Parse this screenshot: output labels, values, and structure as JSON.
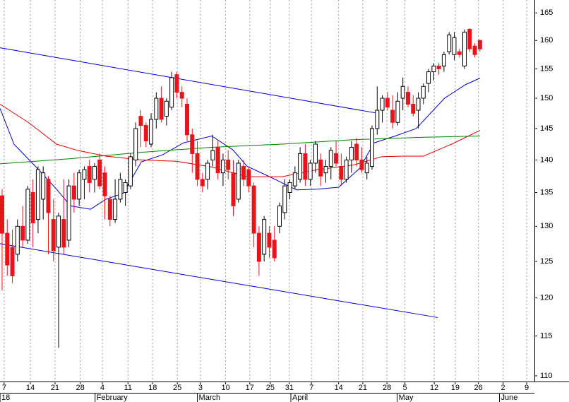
{
  "chart_data": {
    "type": "candlestick",
    "up_color": "#ffffff",
    "down_color": "#e8141b",
    "ohlc": [
      [
        134.5,
        135.5,
        121,
        129
      ],
      [
        129,
        131,
        123,
        124.5
      ],
      [
        127,
        129.5,
        122,
        123
      ],
      [
        126,
        131,
        125,
        130
      ],
      [
        130,
        133,
        127,
        128
      ],
      [
        128,
        136,
        127.5,
        135.5
      ],
      [
        135,
        137,
        127,
        130.5
      ],
      [
        131,
        139,
        129,
        138.5
      ],
      [
        134,
        139,
        131,
        138
      ],
      [
        137,
        137.5,
        126,
        132
      ],
      [
        131,
        134,
        125,
        126.5
      ],
      [
        127,
        132,
        113.5,
        131.5
      ],
      [
        131,
        137,
        126,
        127
      ],
      [
        128,
        137,
        127,
        136
      ],
      [
        136,
        138,
        132,
        134
      ],
      [
        134,
        138.5,
        133,
        138
      ],
      [
        137,
        139,
        134,
        138.5
      ],
      [
        139,
        140,
        135,
        136.5
      ],
      [
        137,
        139.5,
        135,
        139
      ],
      [
        140,
        141,
        135.5,
        136
      ],
      [
        138,
        139,
        131,
        134.5
      ],
      [
        134,
        134.5,
        130,
        131
      ],
      [
        131,
        137,
        130.5,
        134
      ],
      [
        134,
        138,
        133.5,
        137
      ],
      [
        135,
        137,
        133,
        136.5
      ],
      [
        136,
        141,
        135.5,
        140.5
      ],
      [
        140,
        146,
        139,
        145
      ],
      [
        147,
        148,
        142,
        145.5
      ],
      [
        145.5,
        146,
        142,
        143
      ],
      [
        142.5,
        147.5,
        142,
        146.5
      ],
      [
        146.5,
        151,
        145,
        150
      ],
      [
        150,
        152,
        146,
        146.5
      ],
      [
        147,
        150,
        145.5,
        149.5
      ],
      [
        148.5,
        154.5,
        148,
        153.5
      ],
      [
        154,
        154.5,
        150,
        151
      ],
      [
        151,
        152,
        148.5,
        150
      ],
      [
        149,
        150,
        143,
        144
      ],
      [
        144,
        145,
        138,
        141
      ],
      [
        141,
        143,
        136,
        137
      ],
      [
        137,
        138,
        135,
        136
      ],
      [
        137,
        140,
        135.5,
        139.5
      ],
      [
        140,
        144,
        139,
        141.5
      ],
      [
        142,
        143,
        137,
        138
      ],
      [
        138,
        141,
        136,
        140
      ],
      [
        140,
        141.5,
        137,
        138.5
      ],
      [
        138,
        140,
        131.5,
        133
      ],
      [
        134,
        140,
        133.5,
        139.5
      ],
      [
        139,
        140,
        136,
        137
      ],
      [
        138.5,
        139,
        135,
        136
      ],
      [
        136,
        136.5,
        127,
        129
      ],
      [
        129,
        130,
        123,
        125
      ],
      [
        126,
        131.5,
        125,
        131
      ],
      [
        129,
        130,
        125.5,
        127
      ],
      [
        128,
        130,
        125,
        125.5
      ],
      [
        130,
        133.5,
        129,
        133
      ],
      [
        132,
        137,
        131,
        136
      ],
      [
        135,
        137,
        134,
        136.5
      ],
      [
        136,
        139,
        135.5,
        138
      ],
      [
        137,
        142,
        136.5,
        141
      ],
      [
        141,
        142.5,
        136,
        137
      ],
      [
        137,
        140,
        136,
        139.5
      ],
      [
        139.5,
        143,
        138,
        142.5
      ],
      [
        140,
        141,
        136,
        137.5
      ],
      [
        138,
        140,
        136.5,
        139
      ],
      [
        139,
        142,
        137,
        141.5
      ],
      [
        141,
        143,
        139,
        139.5
      ],
      [
        139,
        141,
        136,
        137
      ],
      [
        137,
        140.5,
        136.5,
        140
      ],
      [
        140,
        143,
        138,
        142
      ],
      [
        142.5,
        143.5,
        139,
        140
      ],
      [
        140,
        142,
        138,
        138.5
      ],
      [
        138,
        140.5,
        137,
        139.5
      ],
      [
        139,
        145.5,
        138.5,
        145
      ],
      [
        145,
        152,
        144,
        148
      ],
      [
        148,
        150.5,
        146,
        150
      ],
      [
        150,
        151,
        148,
        148.5
      ],
      [
        148,
        150.5,
        145,
        146
      ],
      [
        146,
        151,
        145.5,
        149.5
      ],
      [
        150,
        153.5,
        148,
        152
      ],
      [
        151,
        152,
        148.5,
        149
      ],
      [
        149,
        150.5,
        147,
        147.5
      ],
      [
        148,
        151,
        145,
        150
      ],
      [
        150,
        152.5,
        149,
        152
      ],
      [
        152.5,
        155,
        151,
        154.5
      ],
      [
        154.5,
        156,
        153,
        155.5
      ],
      [
        155.5,
        156,
        154,
        155
      ],
      [
        155.5,
        158,
        154.5,
        157.5
      ],
      [
        158,
        161.5,
        157.5,
        161
      ],
      [
        157.5,
        161.5,
        156.5,
        160.5
      ],
      [
        158,
        158.5,
        157,
        157.5
      ],
      [
        155.5,
        162,
        155,
        161.5
      ],
      [
        162,
        162.2,
        158,
        158.5
      ],
      [
        159,
        159.5,
        157,
        157.5
      ],
      [
        160,
        160.2,
        158,
        158.5
      ]
    ],
    "lines": [
      {
        "color": "#0000cc",
        "x": [
          -0.4,
          2.3,
          6.5,
          10.6,
          13.3,
          17.2,
          20.2,
          23.6,
          27.1,
          31.2,
          35.3,
          40.8,
          44.9,
          47.7,
          51.8,
          57.3,
          61.4,
          65.5,
          69.6,
          72.4,
          76.5,
          80.6,
          86.1,
          90.2,
          93
        ],
        "values": [
          148.3,
          142.5,
          139,
          135.5,
          133,
          132.5,
          134,
          134.9,
          139.7,
          140.8,
          142.7,
          143.8,
          141.6,
          139,
          137.5,
          135.4,
          135.5,
          135.8,
          138.7,
          142.7,
          143.8,
          145,
          150,
          152.3,
          153.4
        ]
      },
      {
        "color": "#dd0000",
        "x": [
          -0.4,
          5.1,
          10.6,
          14.7,
          20.2,
          27.1,
          33.9,
          40.8,
          47.7,
          54.5,
          61.4,
          68.3,
          73.8,
          77.9,
          82,
          87.5,
          93
        ],
        "values": [
          149,
          146,
          142.5,
          141.5,
          140.6,
          140,
          139.8,
          138.9,
          137.4,
          137.4,
          138.5,
          139.2,
          140.5,
          140.6,
          140.6,
          142.5,
          144.7
        ]
      },
      {
        "color": "#008000",
        "x": [
          -0.4,
          13.3,
          27.1,
          40.8,
          54.5,
          68.3,
          82,
          93
        ],
        "values": [
          139.4,
          140.2,
          141.2,
          142,
          142.5,
          143.2,
          143.6,
          143.8
        ]
      }
    ],
    "trendlines": [
      {
        "color": "#0000cc",
        "x": [
          -0.4,
          73.1
        ],
        "values": [
          158.7,
          147.5
        ]
      },
      {
        "color": "#0000cc",
        "x": [
          -0.4,
          84.8
        ],
        "values": [
          127.5,
          117.4
        ]
      }
    ],
    "xlim": [
      -0.41,
      103.6
    ],
    "xticks": [
      {
        "value": 0.4,
        "label": "7"
      },
      {
        "value": 5.5,
        "label": "14"
      },
      {
        "value": 10.3,
        "label": "21"
      },
      {
        "value": 15.2,
        "label": "28"
      },
      {
        "value": 19.5,
        "label": "4"
      },
      {
        "value": 24.5,
        "label": "11"
      },
      {
        "value": 29.3,
        "label": "18"
      },
      {
        "value": 34.1,
        "label": "25"
      },
      {
        "value": 38.6,
        "label": "3"
      },
      {
        "value": 43.5,
        "label": "10"
      },
      {
        "value": 48.2,
        "label": "17"
      },
      {
        "value": 52.2,
        "label": "25"
      },
      {
        "value": 55.9,
        "label": "31"
      },
      {
        "value": 60.2,
        "label": "7"
      },
      {
        "value": 65.5,
        "label": "14"
      },
      {
        "value": 70.2,
        "label": "21"
      },
      {
        "value": 74.9,
        "label": "28"
      },
      {
        "value": 78.4,
        "label": "5"
      },
      {
        "value": 84.1,
        "label": "12"
      },
      {
        "value": 88.2,
        "label": "19"
      },
      {
        "value": 92.7,
        "label": "26"
      },
      {
        "value": 97.5,
        "label": "2"
      },
      {
        "value": 102.1,
        "label": "9"
      }
    ],
    "month_ticks": [
      {
        "value": -0.4,
        "label": "18"
      },
      {
        "value": 18.1,
        "label": "February"
      },
      {
        "value": 38,
        "label": "March"
      },
      {
        "value": 56.2,
        "label": "April"
      },
      {
        "value": 76.9,
        "label": "May"
      },
      {
        "value": 96.8,
        "label": "June"
      }
    ],
    "ylim": [
      109.3,
      167.4
    ],
    "yticks": [
      110,
      115,
      120,
      125,
      130,
      135,
      140,
      145,
      150,
      155,
      160,
      165
    ],
    "y_log": true,
    "grid": "x"
  }
}
